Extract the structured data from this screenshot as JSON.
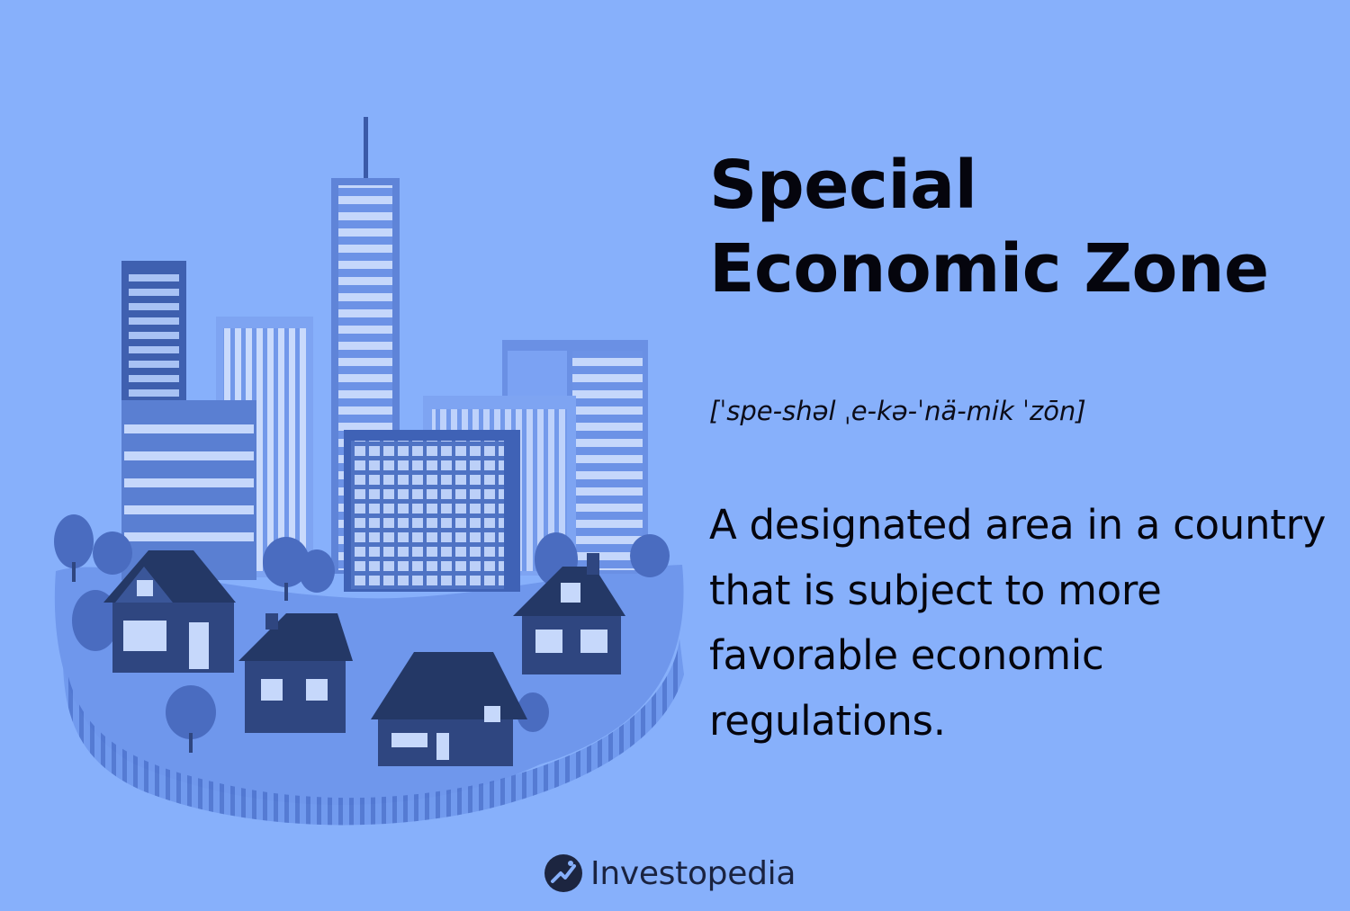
{
  "header": {
    "title_line1": "Special",
    "title_line2": "Economic Zone"
  },
  "pronunciation": "[ˈspe-shəl ˌe-kə-ˈnä-mik ˈzōn]",
  "definition": "A designated area in a country that is subject to more favorable economic regulations.",
  "footer": {
    "brand": "Investopedia",
    "brand_icon": "investopedia-logo-icon"
  },
  "illustration": {
    "icon": "city-zone-illustration",
    "colors": {
      "background": "#87b0fb",
      "ground": "#6f97ec",
      "building_light": "#7ea4f2",
      "building_mid": "#5f84d8",
      "building_dark": "#3a5aa8",
      "house": "#2f4680",
      "roof": "#243866",
      "window": "#c6d8fb"
    }
  }
}
